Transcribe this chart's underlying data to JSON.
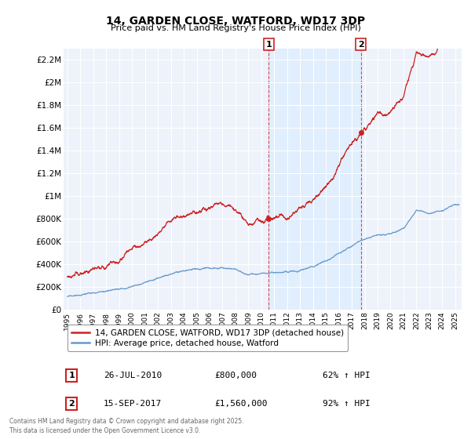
{
  "title": "14, GARDEN CLOSE, WATFORD, WD17 3DP",
  "subtitle": "Price paid vs. HM Land Registry's House Price Index (HPI)",
  "ylabel_ticks": [
    "£0",
    "£200K",
    "£400K",
    "£600K",
    "£800K",
    "£1M",
    "£1.2M",
    "£1.4M",
    "£1.6M",
    "£1.8M",
    "£2M",
    "£2.2M"
  ],
  "ytick_vals": [
    0,
    200000,
    400000,
    600000,
    800000,
    1000000,
    1200000,
    1400000,
    1600000,
    1800000,
    2000000,
    2200000
  ],
  "ylim": [
    0,
    2300000
  ],
  "xlim_start": 1994.7,
  "xlim_end": 2025.5,
  "sale1_date": 2010.57,
  "sale1_price": 800000,
  "sale1_label": "1",
  "sale2_date": 2017.71,
  "sale2_price": 1560000,
  "sale2_label": "2",
  "legend_line1": "14, GARDEN CLOSE, WATFORD, WD17 3DP (detached house)",
  "legend_line2": "HPI: Average price, detached house, Watford",
  "annotation1_date": "26-JUL-2010",
  "annotation1_price": "£800,000",
  "annotation1_hpi": "62% ↑ HPI",
  "annotation2_date": "15-SEP-2017",
  "annotation2_price": "£1,560,000",
  "annotation2_hpi": "92% ↑ HPI",
  "footer": "Contains HM Land Registry data © Crown copyright and database right 2025.\nThis data is licensed under the Open Government Licence v3.0.",
  "hpi_color": "#6699cc",
  "price_color": "#cc2222",
  "vline_color": "#cc2222",
  "span_color": "#ddeeff",
  "bg_plot": "#eef2fa",
  "bg_fig": "#ffffff",
  "grid_color": "#ffffff"
}
